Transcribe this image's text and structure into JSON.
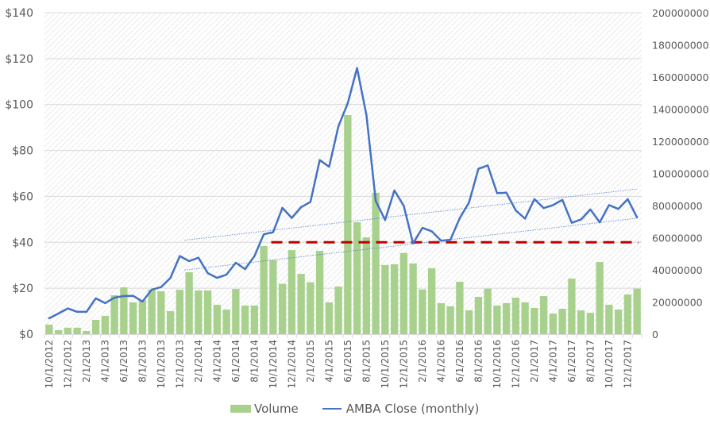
{
  "chart_data": {
    "type": "bar+line",
    "title": "",
    "xlabel": "",
    "ylabel_left": "",
    "ylabel_right": "",
    "grid": true,
    "legend_position": "bottom",
    "x": [
      "10/1/2012",
      "11/1/2012",
      "12/1/2012",
      "1/1/2013",
      "2/1/2013",
      "3/1/2013",
      "4/1/2013",
      "5/1/2013",
      "6/1/2013",
      "7/1/2013",
      "8/1/2013",
      "9/1/2013",
      "10/1/2013",
      "11/1/2013",
      "12/1/2013",
      "1/1/2014",
      "2/1/2014",
      "3/1/2014",
      "4/1/2014",
      "5/1/2014",
      "6/1/2014",
      "7/1/2014",
      "8/1/2014",
      "9/1/2014",
      "10/1/2014",
      "11/1/2014",
      "12/1/2014",
      "1/1/2015",
      "2/1/2015",
      "3/1/2015",
      "4/1/2015",
      "5/1/2015",
      "6/1/2015",
      "7/1/2015",
      "8/1/2015",
      "9/1/2015",
      "10/1/2015",
      "11/1/2015",
      "12/1/2015",
      "1/1/2016",
      "2/1/2016",
      "3/1/2016",
      "4/1/2016",
      "5/1/2016",
      "6/1/2016",
      "7/1/2016",
      "8/1/2016",
      "9/1/2016",
      "10/1/2016",
      "11/1/2016",
      "12/1/2016",
      "1/1/2017",
      "2/1/2017",
      "3/1/2017",
      "4/1/2017",
      "5/1/2017",
      "6/1/2017",
      "7/1/2017",
      "8/1/2017",
      "9/1/2017",
      "10/1/2017",
      "11/1/2017",
      "12/1/2017",
      "1/1/2018"
    ],
    "x_tick_labels": [
      "10/1/2012",
      "12/1/2012",
      "2/1/2013",
      "4/1/2013",
      "6/1/2013",
      "8/1/2013",
      "10/1/2013",
      "12/1/2013",
      "2/1/2014",
      "4/1/2014",
      "6/1/2014",
      "8/1/2014",
      "10/1/2014",
      "12/1/2014",
      "2/1/2015",
      "4/1/2015",
      "6/1/2015",
      "8/1/2015",
      "10/1/2015",
      "12/1/2015",
      "2/1/2016",
      "4/1/2016",
      "6/1/2016",
      "8/1/2016",
      "10/1/2016",
      "12/1/2016",
      "2/1/2017",
      "4/1/2017",
      "6/1/2017",
      "8/1/2017",
      "10/1/2017",
      "12/1/2017"
    ],
    "y_left": {
      "min": 0,
      "max": 140,
      "step": 20,
      "tick_labels": [
        "$0",
        "$20",
        "$40",
        "$60",
        "$80",
        "$100",
        "$120",
        "$140"
      ]
    },
    "y_right": {
      "min": 0,
      "max": 200000000,
      "step": 20000000,
      "tick_labels": [
        "0",
        "20000000",
        "40000000",
        "60000000",
        "80000000",
        "100000000",
        "120000000",
        "140000000",
        "160000000",
        "180000000",
        "200000000"
      ]
    },
    "series": [
      {
        "name": "Volume",
        "type": "bar",
        "axis": "right",
        "color": "#a9d18e",
        "values": [
          5900000,
          2500000,
          4000000,
          4000000,
          2000000,
          8900000,
          11400000,
          24200000,
          29100000,
          19800000,
          21200000,
          27600000,
          26700000,
          14300000,
          27600000,
          38500000,
          27200000,
          27200000,
          18300000,
          15300000,
          28100000,
          17800000,
          17800000,
          54800000,
          46000000,
          31300000,
          52300000,
          37500000,
          32300000,
          51800000,
          19800000,
          29600000,
          136300000,
          69600000,
          60200000,
          88000000,
          43000000,
          43500000,
          50500000,
          44000000,
          27800000,
          41000000,
          19300000,
          17300000,
          32600000,
          14800000,
          23200000,
          28300000,
          17800000,
          19300000,
          22700000,
          19800000,
          16300000,
          23700000,
          12800000,
          15800000,
          34600000,
          14800000,
          13300000,
          44900000,
          18300000,
          15300000,
          24700000,
          28300000
        ]
      },
      {
        "name": "AMBA Close (monthly)",
        "type": "line",
        "axis": "left",
        "color": "#4472c4",
        "values": [
          6.9,
          9.0,
          11.2,
          9.7,
          9.7,
          15.6,
          13.5,
          15.9,
          16.6,
          16.7,
          14.2,
          19.4,
          20.5,
          24.5,
          34.0,
          31.8,
          33.3,
          26.6,
          24.5,
          25.9,
          31.1,
          28.3,
          34.0,
          43.5,
          44.4,
          55.0,
          50.6,
          55.3,
          57.6,
          75.8,
          72.9,
          90.5,
          100.6,
          115.9,
          95.4,
          58.0,
          49.7,
          62.6,
          55.9,
          39.5,
          46.3,
          44.8,
          40.7,
          41.1,
          50.5,
          57.4,
          72.0,
          73.5,
          61.4,
          61.6,
          53.9,
          50.3,
          58.8,
          54.9,
          56.2,
          58.5,
          48.5,
          49.9,
          54.3,
          48.7,
          56.2,
          54.5,
          58.8,
          50.8
        ]
      }
    ],
    "annotations": [
      {
        "type": "horizontal-dashed",
        "name": "support-line",
        "color": "#c00000",
        "y": 40,
        "x_start": "10/1/2014",
        "x_end": "1/1/2018"
      },
      {
        "type": "dotted-trendline",
        "name": "upper-channel",
        "color": "#4472c4",
        "from": {
          "x": "1/1/2014",
          "y": 40.9
        },
        "to": {
          "x": "1/1/2018",
          "y": 63.2
        }
      },
      {
        "type": "dotted-trendline",
        "name": "lower-channel",
        "color": "#4472c4",
        "from": {
          "x": "1/1/2014",
          "y": 27.9
        },
        "to": {
          "x": "1/1/2018",
          "y": 50.5
        }
      }
    ]
  },
  "legend": {
    "items": [
      {
        "label": "Volume",
        "kind": "bar",
        "color": "#a9d18e"
      },
      {
        "label": "AMBA Close (monthly)",
        "kind": "line",
        "color": "#4472c4"
      }
    ]
  }
}
